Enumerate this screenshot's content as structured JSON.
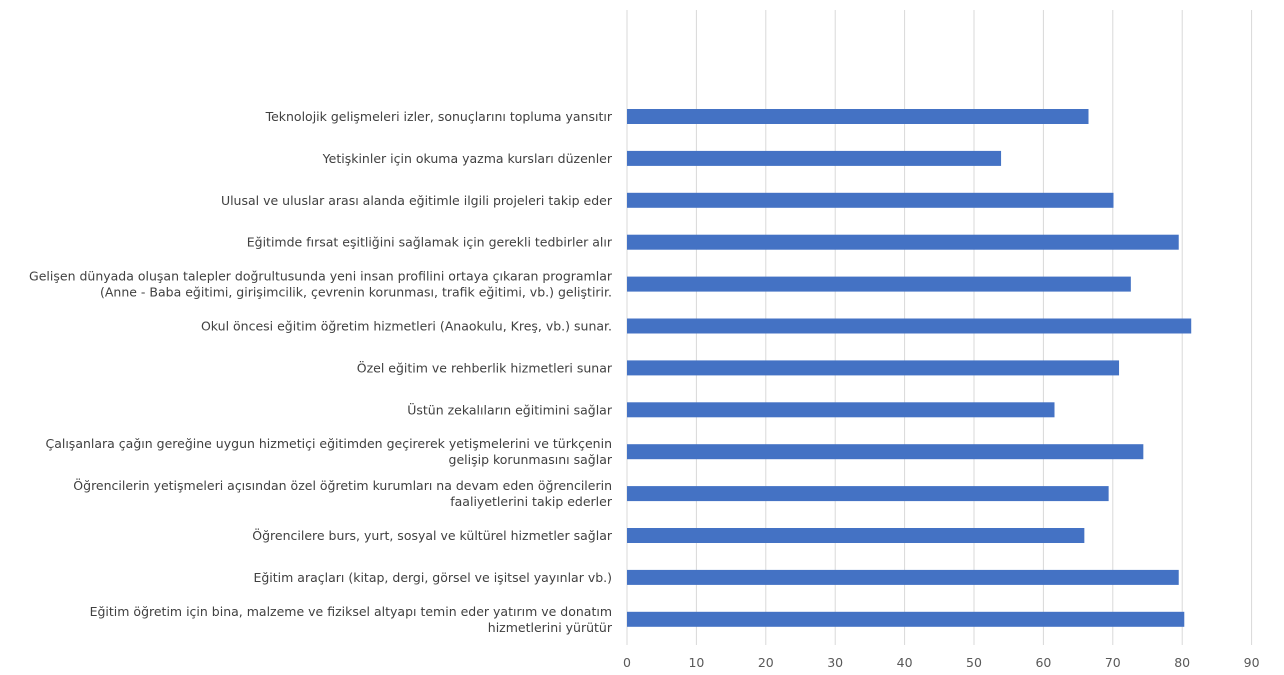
{
  "chart_data": {
    "type": "bar",
    "orientation": "horizontal",
    "categories": [
      "Teknolojik gelişmeleri izler, sonuçlarını topluma yansıtır",
      "Yetişkinler için okuma yazma kursları düzenler",
      "Ulusal ve uluslar arası alanda eğitimle ilgili projeleri takip eder",
      "Eğitimde fırsat eşitliğini sağlamak için gerekli tedbirler alır",
      "Gelişen dünyada oluşan talepler doğrultusunda yeni insan profilini ortaya çıkaran programlar (Anne - Baba eğitimi, girişimcilik, çevrenin korunması, trafik eğitimi, vb.) geliştirir.",
      "Okul öncesi eğitim öğretim hizmetleri (Anaokulu, Kreş, vb.) sunar.",
      "Özel eğitim ve rehberlik hizmetleri sunar",
      "Üstün zekalıların eğitimini sağlar",
      "Çalışanlara çağın gereğine uygun hizmetiçi eğitimden geçirerek yetişmelerini ve türkçenin gelişip korunmasını sağlar",
      "Öğrencilerin yetişmeleri açısından özel öğretim kurumları na devam eden öğrencilerin faaliyetlerini takip ederler",
      "Öğrencilere burs, yurt, sosyal ve kültürel hizmetler sağlar",
      "Eğitim araçları (kitap, dergi, görsel ve işitsel yayınlar vb.)",
      "Eğitim öğretim için bina, malzeme ve fiziksel altyapı temin eder yatırım ve donatım hizmetlerini yürütür"
    ],
    "category_lines": [
      [
        "Teknolojik gelişmeleri izler, sonuçlarını topluma yansıtır"
      ],
      [
        "Yetişkinler için okuma yazma kursları düzenler"
      ],
      [
        "Ulusal ve uluslar arası alanda eğitimle ilgili projeleri takip eder"
      ],
      [
        "Eğitimde fırsat eşitliğini sağlamak için gerekli tedbirler alır"
      ],
      [
        "Gelişen dünyada oluşan talepler doğrultusunda yeni insan profilini ortaya çıkaran programlar",
        "(Anne - Baba eğitimi, girişimcilik, çevrenin korunması, trafik eğitimi, vb.) geliştirir."
      ],
      [
        "Okul öncesi eğitim öğretim hizmetleri (Anaokulu, Kreş, vb.) sunar."
      ],
      [
        "Özel eğitim ve rehberlik hizmetleri sunar"
      ],
      [
        "Üstün zekalıların eğitimini sağlar"
      ],
      [
        "Çalışanlara çağın gereğine uygun hizmetiçi eğitimden geçirerek yetişmelerini ve türkçenin",
        "gelişip korunmasını sağlar"
      ],
      [
        "Öğrencilerin yetişmeleri açısından özel öğretim kurumları na devam eden öğrencilerin",
        "faaliyetlerini takip ederler"
      ],
      [
        "Öğrencilere burs, yurt, sosyal ve kültürel hizmetler sağlar"
      ],
      [
        "Eğitim araçları (kitap, dergi, görsel ve işitsel yayınlar vb.)"
      ],
      [
        "Eğitim öğretim için bina, malzeme ve fiziksel altyapı temin eder yatırım ve donatım",
        "hizmetlerini yürütür"
      ]
    ],
    "values": [
      66.5,
      53.9,
      70.1,
      79.5,
      72.6,
      81.3,
      70.9,
      61.6,
      74.4,
      69.4,
      65.9,
      79.5,
      80.3
    ],
    "xlim": [
      0,
      90
    ],
    "xticks": [
      0,
      10,
      20,
      30,
      40,
      50,
      60,
      70,
      80,
      90
    ],
    "title": "",
    "xlabel": "",
    "ylabel": "",
    "grid": "vertical",
    "bar_color": "#4472C4",
    "grid_color": "#D9D9D9",
    "label_color": "#404040"
  }
}
